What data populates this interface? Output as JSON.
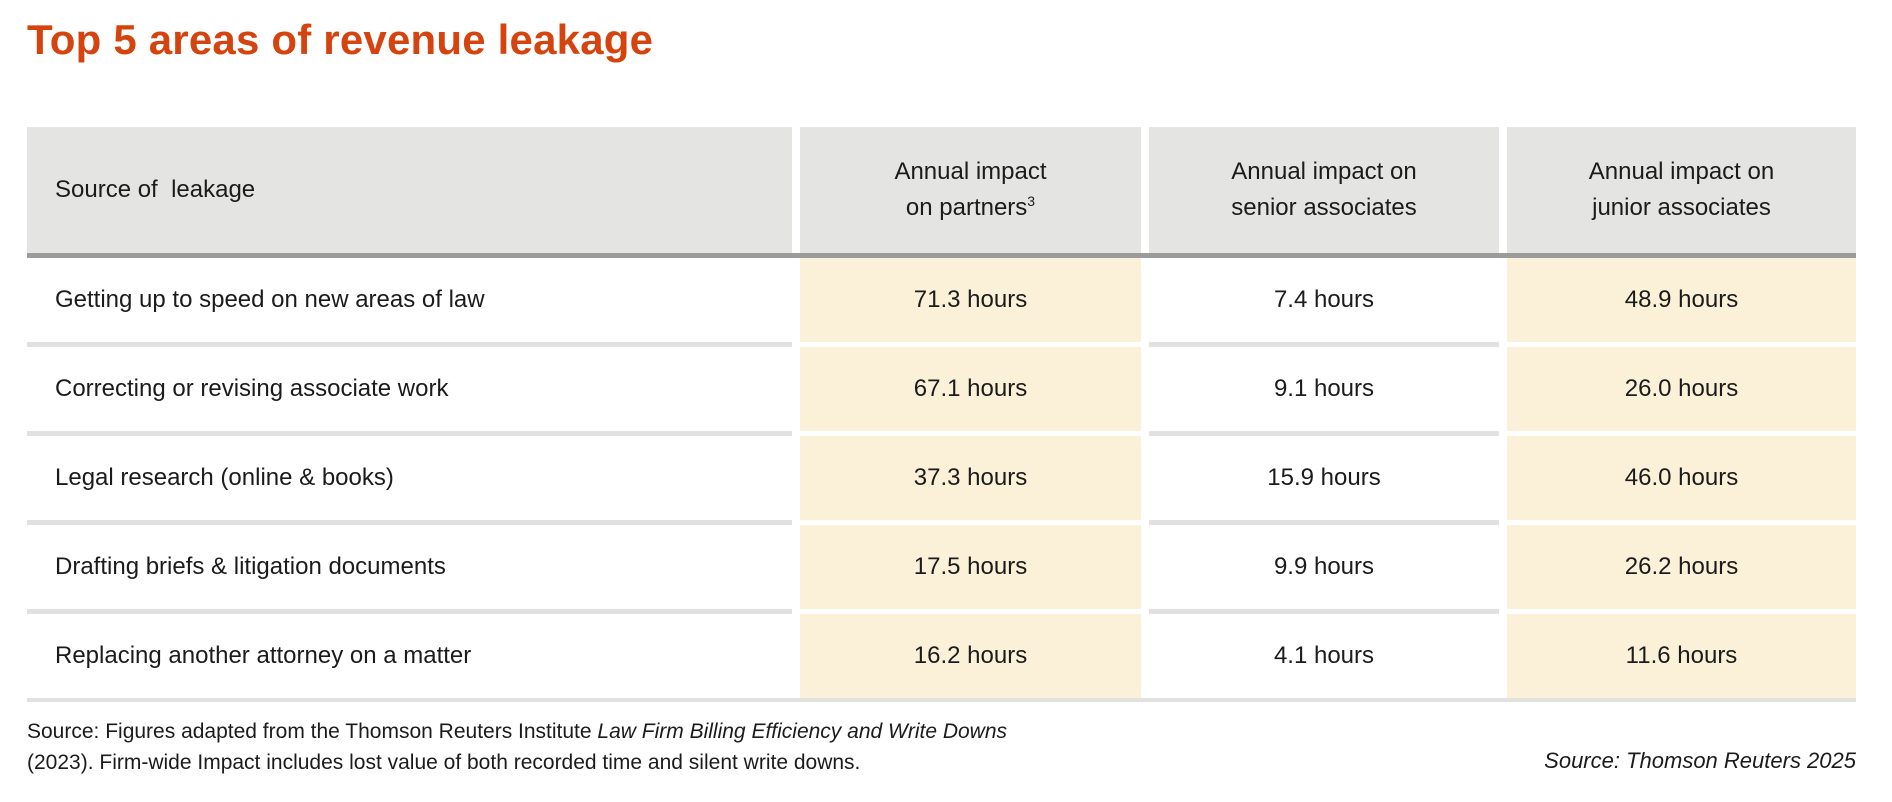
{
  "title": "Top 5 areas of revenue leakage",
  "colors": {
    "title_orange": "#d5430f",
    "header_gray": "#e4e4e3",
    "thick_divider_gray": "#9b9b9b",
    "highlight_cream": "#faf1d8",
    "separator_gray": "#e1e1e0",
    "text_dark": "#1b1b1b"
  },
  "table": {
    "header": {
      "col1": "Source of  leakage",
      "col2_line1": "Annual impact",
      "col2_line2": "on partners",
      "col2_footnote": "3",
      "col3_line1": "Annual impact on",
      "col3_line2": "senior associates",
      "col4_line1": "Annual impact on",
      "col4_line2": "junior associates"
    },
    "rows": [
      {
        "source": "Getting up to speed on new areas of law",
        "partners": "71.3 hours",
        "senior": "7.4 hours",
        "junior": "48.9 hours"
      },
      {
        "source": "Correcting or revising associate work",
        "partners": "67.1 hours",
        "senior": "9.1 hours",
        "junior": "26.0 hours"
      },
      {
        "source": "Legal research (online & books)",
        "partners": "37.3 hours",
        "senior": "15.9 hours",
        "junior": "46.0 hours"
      },
      {
        "source": "Drafting briefs & litigation documents",
        "partners": "17.5 hours",
        "senior": "9.9 hours",
        "junior": "26.2 hours"
      },
      {
        "source": "Replacing another attorney on a matter",
        "partners": "16.2 hours",
        "senior": "4.1 hours",
        "junior": "11.6 hours"
      }
    ]
  },
  "footer": {
    "left_line1_prefix": "Source: Figures adapted from the Thomson Reuters Institute ",
    "left_line1_italic": "Law Firm Billing Efficiency and Write Downs",
    "left_line2": "(2023). Firm-wide Impact includes lost value of both recorded time and silent write downs.",
    "right": "Source: Thomson Reuters 2025"
  }
}
